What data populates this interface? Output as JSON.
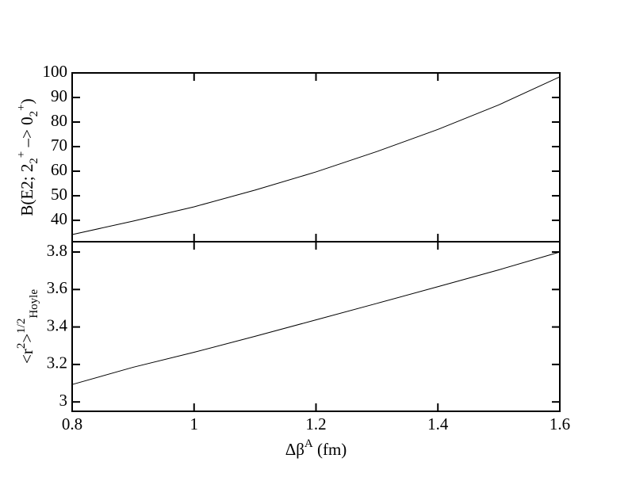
{
  "chart_data": [
    {
      "type": "line",
      "ylabel": [
        {
          "text": "B(E2; 2",
          "pos": "base"
        },
        {
          "text": "2",
          "pos": "sub"
        },
        {
          "text": "+",
          "pos": "sup"
        },
        {
          "text": " –> 0",
          "pos": "base"
        },
        {
          "text": "2",
          "pos": "sub"
        },
        {
          "text": "+",
          "pos": "sup"
        },
        {
          "text": ")",
          "pos": "base"
        }
      ],
      "x": [
        0.8,
        0.9,
        1.0,
        1.1,
        1.2,
        1.3,
        1.4,
        1.5,
        1.6
      ],
      "series": [
        {
          "color": "#000000",
          "values": [
            34.2,
            39.7,
            45.5,
            52.3,
            59.7,
            68,
            77,
            87,
            98.4
          ]
        }
      ],
      "xlim": [
        0.8,
        1.6
      ],
      "xticks": [
        0.8,
        1,
        1.2,
        1.4,
        1.6
      ],
      "ylim": [
        31.3,
        100
      ],
      "yticks": [
        40,
        50,
        60,
        70,
        80,
        90,
        100
      ]
    },
    {
      "type": "line",
      "ylabel": [
        {
          "text": "<r",
          "pos": "base"
        },
        {
          "text": "2",
          "pos": "sup"
        },
        {
          "text": ">",
          "pos": "base"
        },
        {
          "text": "1/2",
          "pos": "sup"
        },
        {
          "text": "Hoyle",
          "pos": "sub"
        }
      ],
      "xlabel": [
        {
          "text": "Δβ",
          "pos": "base"
        },
        {
          "text": "A",
          "pos": "sup"
        },
        {
          "text": " (fm)",
          "pos": "base"
        }
      ],
      "x": [
        0.8,
        0.9,
        1.0,
        1.1,
        1.2,
        1.3,
        1.4,
        1.5,
        1.6
      ],
      "series": [
        {
          "color": "#000000",
          "values": [
            3.093,
            3.185,
            3.265,
            3.35,
            3.438,
            3.526,
            3.615,
            3.705,
            3.8
          ]
        }
      ],
      "xlim": [
        0.8,
        1.6
      ],
      "xticks": [
        0.8,
        1,
        1.2,
        1.4,
        1.6
      ],
      "ylim": [
        2.95,
        3.855
      ],
      "yticks": [
        3,
        3.2,
        3.4,
        3.6,
        3.8
      ]
    }
  ]
}
